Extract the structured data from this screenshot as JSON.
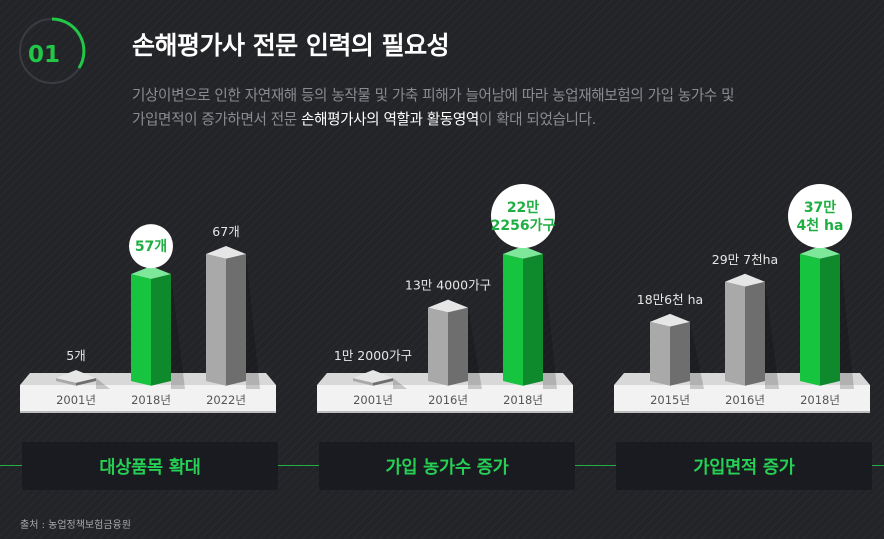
{
  "badge": {
    "number": "01"
  },
  "title": "손해평가사 전문 인력의 필요성",
  "description": {
    "line1": "기상이변으로 인한 자연재해 등의 농작물 및 가축 피해가 늘어남에 따라 농업재해보험의 가입 농가수 및",
    "line2_before": "가입면적이 증가하면서 전문 ",
    "line2_highlight": "손해평가사의 역할과 활동영역",
    "line2_after": "이 확대 되었습니다."
  },
  "colors": {
    "accent": "#21c848",
    "bar_green": "#16c43f",
    "bar_gray": "#a9a9a9",
    "background": "#232428",
    "label_bg": "#1a1b20"
  },
  "chart_data": [
    {
      "type": "bar",
      "caption": "대상품목 확대",
      "categories": [
        "2001년",
        "2018년",
        "2022년"
      ],
      "values": [
        5,
        57,
        67
      ],
      "value_labels": [
        "5개",
        "57개",
        "67개"
      ],
      "highlight_index": 1,
      "ylim": [
        0,
        67
      ]
    },
    {
      "type": "bar",
      "caption": "가입 농가수 증가",
      "categories": [
        "2001년",
        "2016년",
        "2018년"
      ],
      "values": [
        12000,
        134000,
        222256
      ],
      "value_labels": [
        "1만 2000가구",
        "13만 4000가구",
        "22만\n2256가구"
      ],
      "highlight_index": 2,
      "ylim": [
        0,
        222256
      ]
    },
    {
      "type": "bar",
      "caption": "가입면적 증가",
      "categories": [
        "2015년",
        "2016년",
        "2018년"
      ],
      "values": [
        186000,
        297000,
        374000
      ],
      "value_labels": [
        "18만6천 ha",
        "29만 7천ha",
        "37만\n4천 ha"
      ],
      "highlight_index": 2,
      "ylim": [
        0,
        374000
      ]
    }
  ],
  "source": "출처 : 농업정책보험금융원"
}
